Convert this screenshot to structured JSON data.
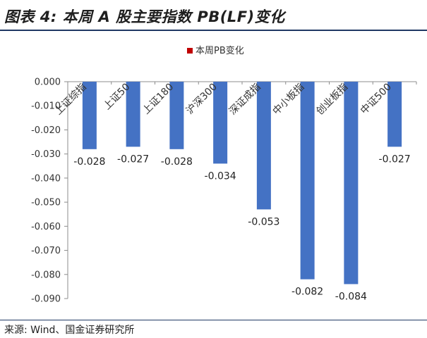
{
  "figure": {
    "title": "图表 4:  本周 A 股主要指数 PB(LF)变化",
    "source": "来源: Wind、国金证券研究所"
  },
  "colors": {
    "bar": "#4472c4",
    "legend_marker": "#c00000",
    "title_rule": "#1f3864"
  },
  "chart_data": {
    "type": "bar",
    "categories": [
      "上证综指",
      "上证50",
      "上证180",
      "沪深300",
      "深证成指",
      "中小板指",
      "创业板指",
      "中证500"
    ],
    "series": [
      {
        "name": "本周PB变化",
        "values": [
          -0.028,
          -0.027,
          -0.028,
          -0.034,
          -0.053,
          -0.082,
          -0.084,
          -0.027
        ]
      }
    ],
    "data_labels": [
      "-0.028",
      "-0.027",
      "-0.028",
      "-0.034",
      "-0.053",
      "-0.082",
      "-0.084",
      "-0.027"
    ],
    "yticks": [
      "0.000",
      "-0.010",
      "-0.020",
      "-0.030",
      "-0.040",
      "-0.050",
      "-0.060",
      "-0.070",
      "-0.080",
      "-0.090"
    ],
    "ylim": [
      -0.09,
      0
    ],
    "legend_position": "top-center",
    "grid": false
  }
}
